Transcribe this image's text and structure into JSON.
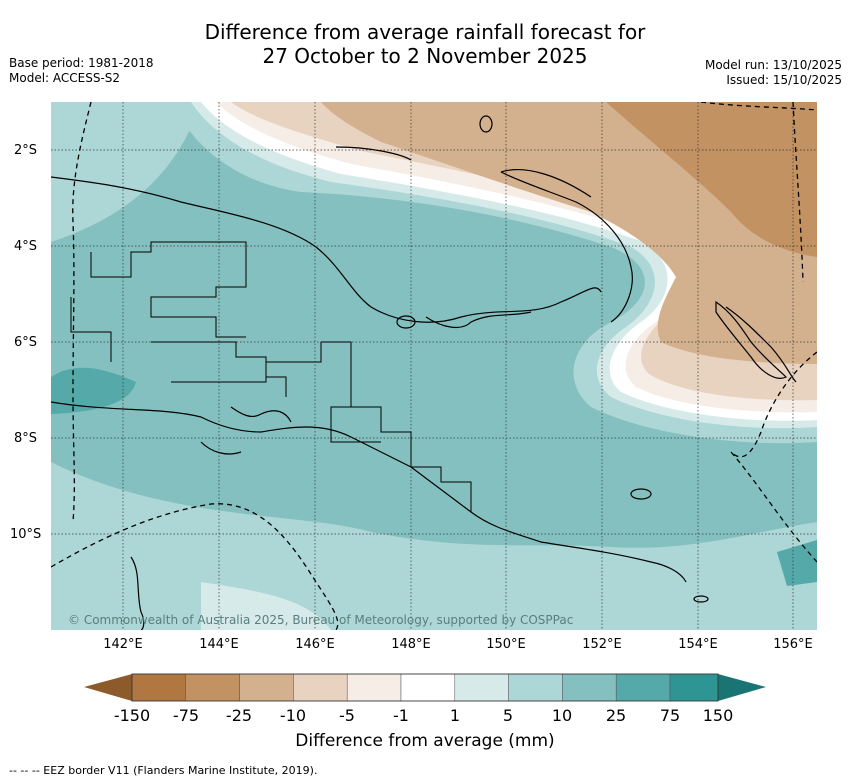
{
  "title": {
    "line1": "Difference from average rainfall forecast for",
    "line2": "27 October to 2 November 2025"
  },
  "meta": {
    "base_period": "Base period: 1981-2018",
    "model": "Model: ACCESS-S2",
    "model_run": "Model run: 13/10/2025",
    "issued": "Issued: 15/10/2025"
  },
  "axes": {
    "lat_labels": [
      "2°S",
      "4°S",
      "6°S",
      "8°S",
      "10°S"
    ],
    "lon_labels": [
      "142°E",
      "144°E",
      "146°E",
      "148°E",
      "150°E",
      "152°E",
      "154°E",
      "156°E"
    ]
  },
  "copyright": "© Commonwealth of Australia 2025, Bureau of Meteorology, supported by COSPPac",
  "colorbar": {
    "labels": [
      "-150",
      "-75",
      "-25",
      "-10",
      "-5",
      "-1",
      "1",
      "5",
      "10",
      "25",
      "75",
      "150"
    ],
    "colors": [
      "#8c5a2b",
      "#b07840",
      "#c29262",
      "#d4b18e",
      "#e8d3c0",
      "#f5ede6",
      "#ffffff",
      "#d6eaea",
      "#add6d6",
      "#85c0c0",
      "#56a9a9",
      "#2f9494",
      "#1a7474"
    ],
    "title": "Difference from average (mm)"
  },
  "legend_note": "--  --  -- EEZ border V11 (Flanders Marine Institute, 2019)."
}
